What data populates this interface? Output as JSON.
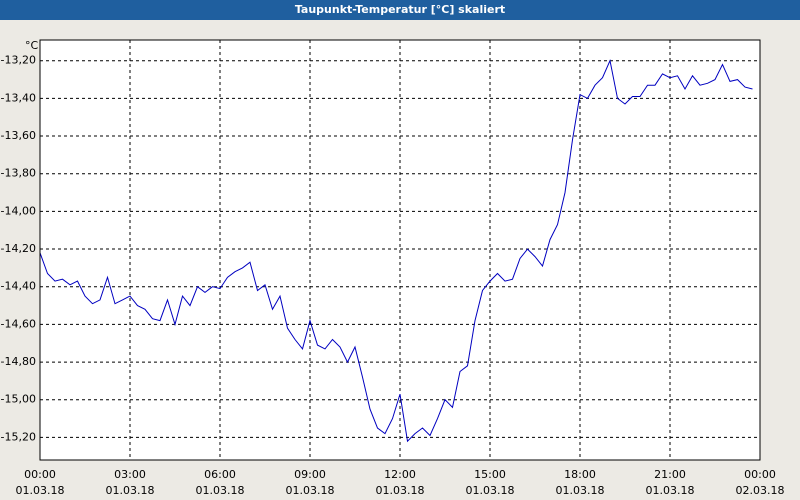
{
  "chart_data": {
    "type": "line",
    "title": "Taupunkt-Temperatur [°C] skaliert",
    "y_unit": "°C",
    "x": [
      0,
      0.25,
      0.5,
      0.75,
      1,
      1.25,
      1.5,
      1.75,
      2,
      2.25,
      2.5,
      2.75,
      3,
      3.25,
      3.5,
      3.75,
      4,
      4.25,
      4.5,
      4.75,
      5,
      5.25,
      5.5,
      5.75,
      6,
      6.25,
      6.5,
      6.75,
      7,
      7.25,
      7.5,
      7.75,
      8,
      8.25,
      8.5,
      8.75,
      9,
      9.25,
      9.5,
      9.75,
      10,
      10.25,
      10.5,
      10.75,
      11,
      11.25,
      11.5,
      11.75,
      12,
      12.25,
      12.5,
      12.75,
      13,
      13.25,
      13.5,
      13.75,
      14,
      14.25,
      14.5,
      14.75,
      15,
      15.25,
      15.5,
      15.75,
      16,
      16.25,
      16.5,
      16.75,
      17,
      17.25,
      17.5,
      17.75,
      18,
      18.25,
      18.5,
      18.75,
      19,
      19.25,
      19.5,
      19.75,
      20,
      20.25,
      20.5,
      20.75,
      21,
      21.25,
      21.5,
      21.75,
      22,
      22.25,
      22.5,
      22.75,
      23,
      23.25,
      23.5,
      23.75
    ],
    "series": [
      {
        "color": "#0000c0",
        "values": [
          -14.22,
          -14.33,
          -14.37,
          -14.36,
          -14.39,
          -14.37,
          -14.45,
          -14.49,
          -14.47,
          -14.35,
          -14.49,
          -14.47,
          -14.45,
          -14.5,
          -14.52,
          -14.57,
          -14.58,
          -14.47,
          -14.6,
          -14.45,
          -14.5,
          -14.4,
          -14.43,
          -14.4,
          -14.41,
          -14.35,
          -14.32,
          -14.3,
          -14.27,
          -14.42,
          -14.39,
          -14.52,
          -14.45,
          -14.62,
          -14.68,
          -14.73,
          -14.58,
          -14.71,
          -14.73,
          -14.68,
          -14.72,
          -14.8,
          -14.72,
          -14.88,
          -15.05,
          -15.15,
          -15.18,
          -15.1,
          -14.97,
          -15.22,
          -15.18,
          -15.15,
          -15.19,
          -15.1,
          -15.0,
          -15.04,
          -14.85,
          -14.82,
          -14.58,
          -14.42,
          -14.37,
          -14.33,
          -14.37,
          -14.36,
          -14.25,
          -14.2,
          -14.24,
          -14.29,
          -14.15,
          -14.07,
          -13.9,
          -13.62,
          -13.38,
          -13.4,
          -13.33,
          -13.29,
          -13.2,
          -13.4,
          -13.43,
          -13.39,
          -13.39,
          -13.33,
          -13.33,
          -13.27,
          -13.29,
          -13.28,
          -13.35,
          -13.28,
          -13.33,
          -13.32,
          -13.3,
          -13.22,
          -13.31,
          -13.3,
          -13.34,
          -13.35
        ]
      }
    ],
    "xlim": [
      0,
      24
    ],
    "xticks": [
      {
        "value": 0,
        "label": "00:00",
        "date": "01.03.18"
      },
      {
        "value": 3,
        "label": "03:00",
        "date": "01.03.18"
      },
      {
        "value": 6,
        "label": "06:00",
        "date": "01.03.18"
      },
      {
        "value": 9,
        "label": "09:00",
        "date": "01.03.18"
      },
      {
        "value": 12,
        "label": "12:00",
        "date": "01.03.18"
      },
      {
        "value": 15,
        "label": "15:00",
        "date": "01.03.18"
      },
      {
        "value": 18,
        "label": "18:00",
        "date": "01.03.18"
      },
      {
        "value": 21,
        "label": "21:00",
        "date": "01.03.18"
      },
      {
        "value": 24,
        "label": "00:00",
        "date": "02.03.18"
      }
    ],
    "ylim": [
      -15.32,
      -13.09
    ],
    "yticks": [
      {
        "value": -13.2,
        "label": "-13,20"
      },
      {
        "value": -13.4,
        "label": "-13,40"
      },
      {
        "value": -13.6,
        "label": "-13,60"
      },
      {
        "value": -13.8,
        "label": "-13,80"
      },
      {
        "value": -14.0,
        "label": "-14,00"
      },
      {
        "value": -14.2,
        "label": "-14,20"
      },
      {
        "value": -14.4,
        "label": "-14,40"
      },
      {
        "value": -14.6,
        "label": "-14,60"
      },
      {
        "value": -14.8,
        "label": "-14,80"
      },
      {
        "value": -15.0,
        "label": "-15,00"
      },
      {
        "value": -15.2,
        "label": "-15,20"
      }
    ],
    "grid": true
  }
}
